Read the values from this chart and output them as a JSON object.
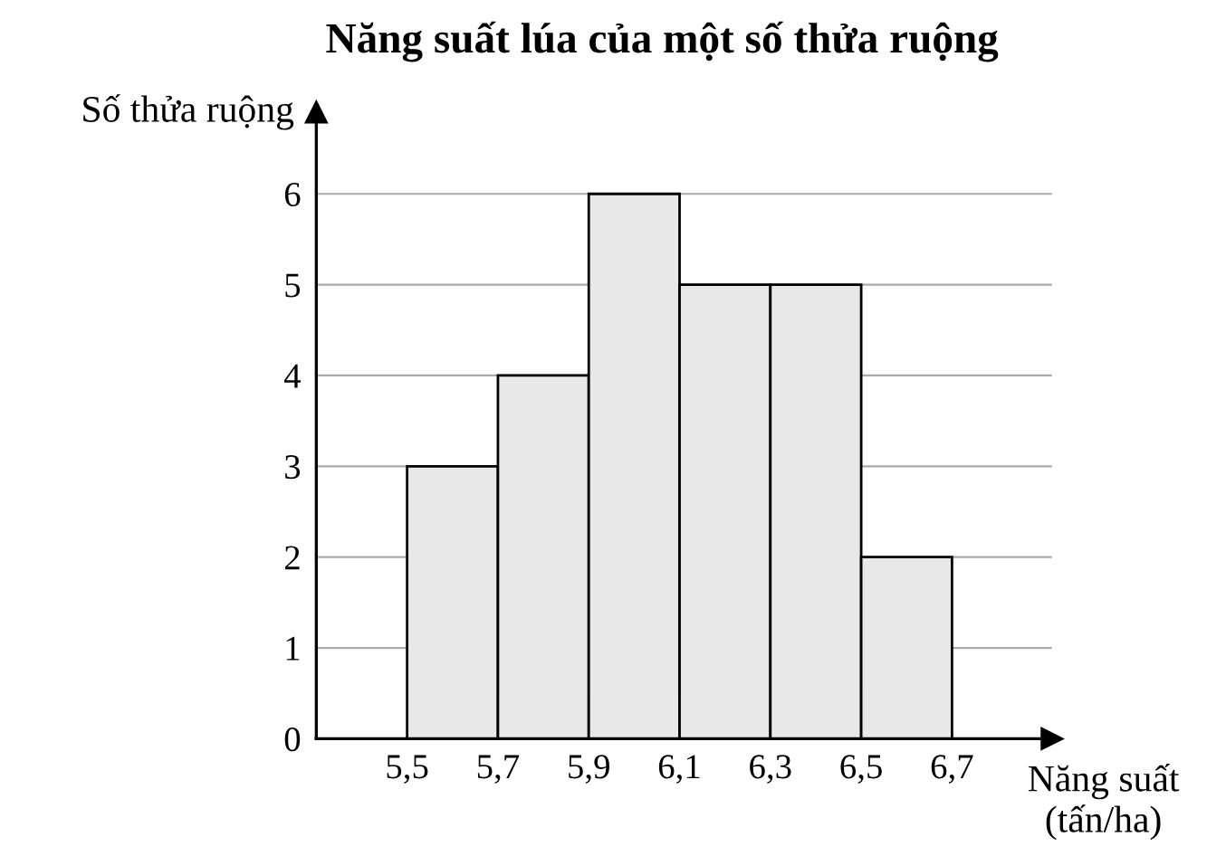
{
  "chart_data": {
    "type": "histogram",
    "title": "Năng suất lúa của một số thửa ruộng",
    "xlabel": "Năng suất\n(tấn/ha)",
    "ylabel": "Số thửa ruộng",
    "bins": [
      5.5,
      5.7,
      5.9,
      6.1,
      6.3,
      6.5,
      6.7
    ],
    "values": [
      3,
      4,
      6,
      5,
      5,
      2
    ],
    "color": "#e8e8e8",
    "xlim": [
      5.3,
      6.92
    ],
    "ylim": [
      0,
      6.9
    ],
    "xticks": [
      {
        "value": 5.5,
        "label": "5,5"
      },
      {
        "value": 5.7,
        "label": "5,7"
      },
      {
        "value": 5.9,
        "label": "5,9"
      },
      {
        "value": 6.1,
        "label": "6,1"
      },
      {
        "value": 6.3,
        "label": "6,3"
      },
      {
        "value": 6.5,
        "label": "6,5"
      },
      {
        "value": 6.7,
        "label": "6,7"
      }
    ],
    "yticks": [
      0,
      1,
      2,
      3,
      4,
      5,
      6
    ],
    "grid": "y"
  }
}
